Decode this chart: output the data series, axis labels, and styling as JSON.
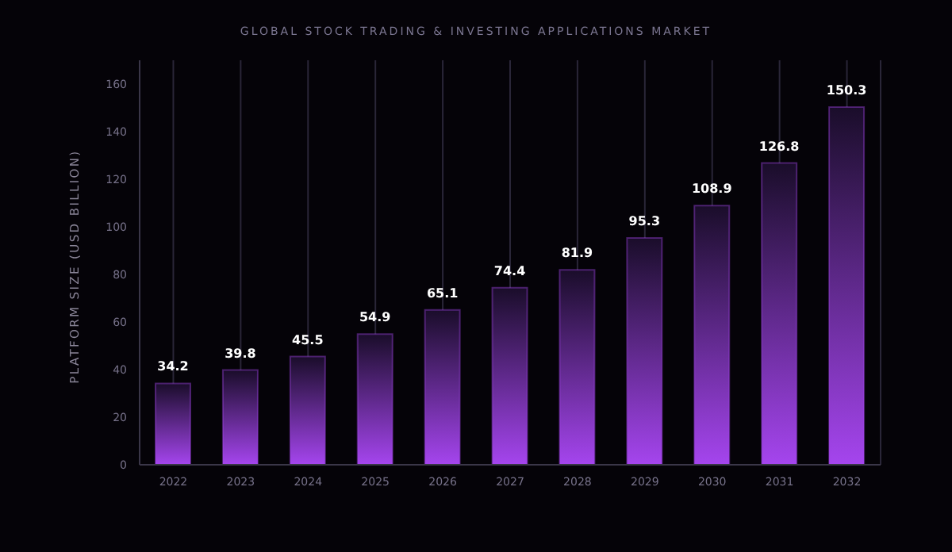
{
  "chart_data": {
    "type": "bar",
    "title": "GLOBAL STOCK TRADING & INVESTING APPLICATIONS MARKET",
    "ylabel": "PLATFORM SIZE (USD BILLION)",
    "categories": [
      "2022",
      "2023",
      "2024",
      "2025",
      "2026",
      "2027",
      "2028",
      "2029",
      "2030",
      "2031",
      "2032"
    ],
    "values": [
      34.2,
      39.8,
      45.5,
      54.9,
      65.1,
      74.4,
      81.9,
      95.3,
      108.9,
      126.8,
      150.3
    ],
    "color": "#a545ee",
    "ylim": [
      0,
      170
    ],
    "yticks": [
      0,
      20,
      40,
      60,
      80,
      100,
      120,
      140,
      160
    ],
    "data_labels": true,
    "grid": "x"
  }
}
